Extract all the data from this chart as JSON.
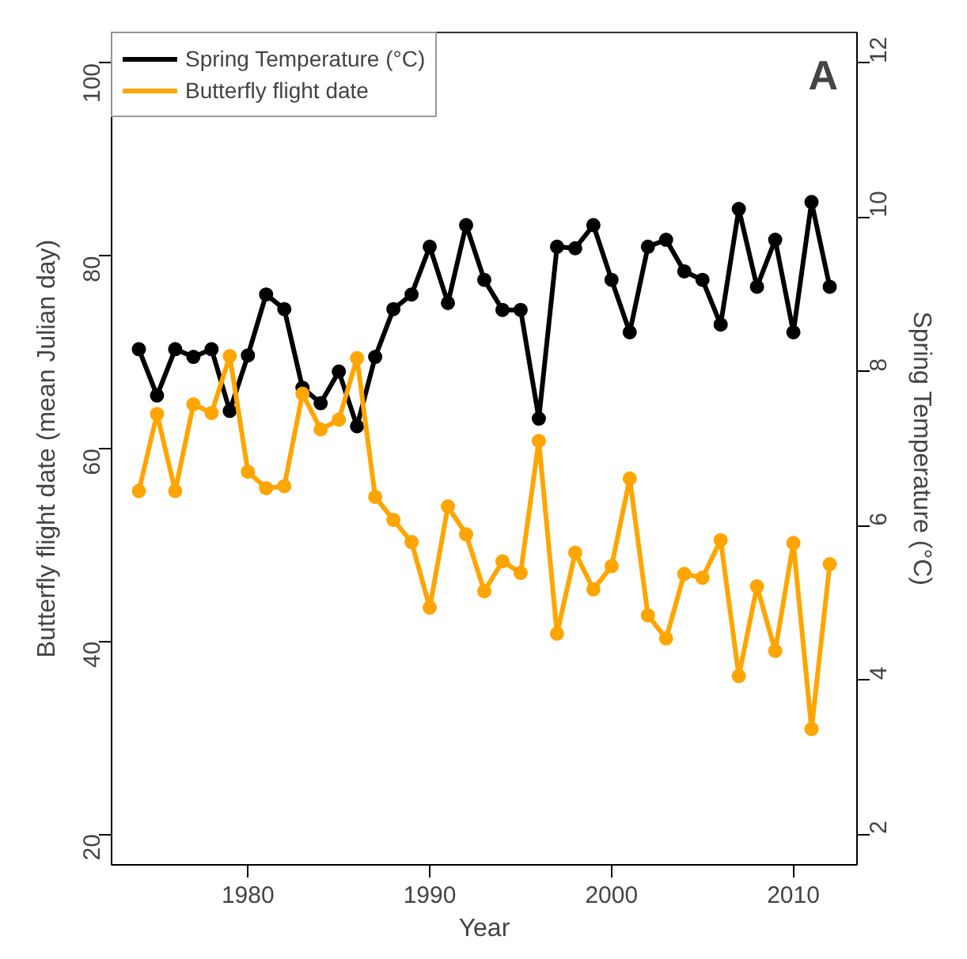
{
  "chart_data": {
    "type": "line",
    "x": [
      1974,
      1975,
      1976,
      1977,
      1978,
      1979,
      1980,
      1981,
      1982,
      1983,
      1984,
      1985,
      1986,
      1987,
      1988,
      1989,
      1990,
      1991,
      1992,
      1993,
      1994,
      1995,
      1996,
      1997,
      1998,
      1999,
      2000,
      2001,
      2002,
      2003,
      2004,
      2005,
      2006,
      2007,
      2008,
      2009,
      2010,
      2011,
      2012
    ],
    "series": [
      {
        "name": "Spring Temperature (°C)",
        "color": "#000000",
        "axis": "y2",
        "values": [
          8.29,
          7.69,
          8.29,
          8.19,
          8.29,
          7.49,
          8.21,
          9.0,
          8.81,
          7.79,
          7.59,
          8.0,
          7.29,
          8.19,
          8.81,
          9.0,
          9.62,
          8.89,
          9.9,
          9.19,
          8.8,
          8.8,
          7.39,
          9.62,
          9.6,
          9.9,
          9.19,
          8.51,
          9.62,
          9.71,
          9.3,
          9.19,
          8.61,
          10.11,
          9.1,
          9.71,
          8.51,
          10.2,
          9.1
        ]
      },
      {
        "name": "Butterfly flight date",
        "color": "#ffa500",
        "values": [
          55.6,
          63.6,
          55.6,
          64.6,
          63.7,
          69.6,
          57.6,
          55.9,
          56.1,
          65.7,
          62.0,
          63.0,
          69.4,
          55.0,
          52.6,
          50.3,
          43.5,
          54.0,
          51.1,
          45.2,
          48.3,
          47.1,
          60.8,
          40.8,
          49.2,
          45.4,
          47.8,
          56.9,
          42.7,
          40.3,
          47.0,
          46.6,
          50.5,
          36.4,
          45.7,
          39.0,
          50.2,
          30.9,
          48.0
        ]
      }
    ],
    "xlabel": "Year",
    "ylabel": "Butterfly flight date (mean Julian day)",
    "y2label": "Spring Temperature (°C)",
    "xlim": [
      1972.5,
      2013.5
    ],
    "xticks": [
      1980,
      1990,
      2000,
      2010
    ],
    "ylim": [
      16.8,
      103.2
    ],
    "yticks": [
      20,
      40,
      60,
      80,
      100
    ],
    "y2lim": [
      1.6,
      12.4
    ],
    "y2ticks": [
      2,
      4,
      6,
      8,
      10,
      12
    ],
    "annotations": [
      "A"
    ],
    "legend": "top left",
    "grid": false,
    "marker": "circle",
    "line_style": "solid"
  }
}
